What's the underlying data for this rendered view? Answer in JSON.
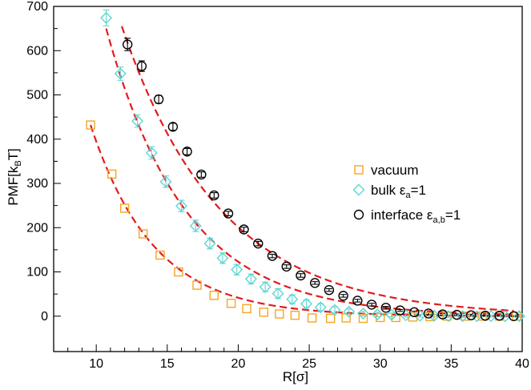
{
  "chart_data": {
    "type": "scatter",
    "xlabel": "R[σ]",
    "ylabel": {
      "main": "PMF[k",
      "sub": "B",
      "tail": "T]"
    },
    "xlim": [
      7,
      40
    ],
    "ylim": [
      -80,
      700
    ],
    "xticks": [
      10,
      15,
      20,
      25,
      30,
      35,
      40
    ],
    "yticks": [
      0,
      100,
      200,
      300,
      400,
      500,
      600,
      700
    ],
    "grid": false,
    "legend_position": "right",
    "fit_color": "#e41a1c",
    "series": [
      {
        "name": "vacuum",
        "legend": {
          "main": "vacuum",
          "sub": "",
          "tail": ""
        },
        "marker": "square",
        "color": "#f5a623",
        "x": [
          9.6,
          11.1,
          12.0,
          13.3,
          14.5,
          15.8,
          17.1,
          18.3,
          19.5,
          20.6,
          21.8,
          22.9,
          24.0,
          25.2,
          26.5,
          27.6,
          28.8,
          30.0,
          31.1,
          32.3,
          33.5,
          34.7,
          36.0,
          37.2,
          38.4,
          39.6
        ],
        "y": [
          432,
          321,
          244,
          186,
          138,
          100,
          70,
          47,
          29,
          17,
          9,
          5,
          2,
          -4,
          -5,
          -4,
          -5,
          -3,
          -3,
          -2,
          -1,
          0,
          0,
          0,
          0,
          0
        ],
        "err": [],
        "fit": {
          "a": 432,
          "x0": 9.6,
          "k": 0.225
        }
      },
      {
        "name": "bulk ε_a=1",
        "legend": {
          "main": "bulk ε",
          "sub": "a",
          "tail": "=1"
        },
        "marker": "diamond",
        "color": "#5ed6d2",
        "x": [
          10.7,
          11.7,
          12.9,
          13.9,
          14.9,
          16.0,
          17.0,
          18.0,
          18.9,
          19.9,
          20.9,
          21.9,
          22.8,
          23.8,
          24.8,
          25.8,
          26.8,
          27.8,
          28.8,
          29.8,
          30.8,
          31.8,
          32.8,
          33.8,
          34.8,
          35.8,
          36.8,
          37.8,
          38.8,
          39.8
        ],
        "y": [
          674,
          548,
          441,
          369,
          304,
          249,
          204,
          164,
          131,
          105,
          84,
          66,
          51,
          38,
          28,
          20,
          14,
          10,
          6,
          4,
          3,
          2,
          1,
          1,
          0,
          0,
          0,
          0,
          0,
          0
        ],
        "err": [
          18,
          15,
          14,
          14,
          13,
          13,
          13,
          12,
          12,
          12,
          11,
          11,
          11,
          10,
          9,
          8,
          7,
          6,
          5,
          5,
          4,
          4,
          3,
          3,
          3,
          3,
          2,
          2,
          2,
          2
        ],
        "fit": {
          "a": 650,
          "x0": 10.7,
          "k": 0.179
        }
      },
      {
        "name": "interface ε_a,b=1",
        "legend": {
          "main": "interface ε",
          "sub": "a,b",
          "tail": "=1"
        },
        "marker": "circle",
        "color": "#000000",
        "x": [
          12.2,
          13.2,
          14.4,
          15.4,
          16.4,
          17.4,
          18.3,
          19.3,
          20.4,
          21.4,
          22.4,
          23.4,
          24.4,
          25.4,
          26.4,
          27.4,
          28.4,
          29.4,
          30.4,
          31.4,
          32.4,
          33.4,
          34.4,
          35.4,
          36.4,
          37.4,
          38.4,
          39.4
        ],
        "y": [
          614,
          565,
          490,
          428,
          372,
          320,
          273,
          232,
          196,
          164,
          136,
          112,
          92,
          75,
          59,
          46,
          35,
          26,
          19,
          13,
          9,
          6,
          4,
          3,
          2,
          1,
          1,
          0
        ],
        "err": [
          14,
          12,
          9,
          8,
          7,
          6,
          6,
          5,
          5,
          5,
          4,
          4,
          4,
          3,
          3,
          3,
          3,
          3,
          3,
          2,
          2,
          2,
          2,
          2,
          2,
          1,
          1,
          1
        ],
        "fit": {
          "a": 655,
          "x0": 11.8,
          "k": 0.144
        }
      }
    ]
  }
}
